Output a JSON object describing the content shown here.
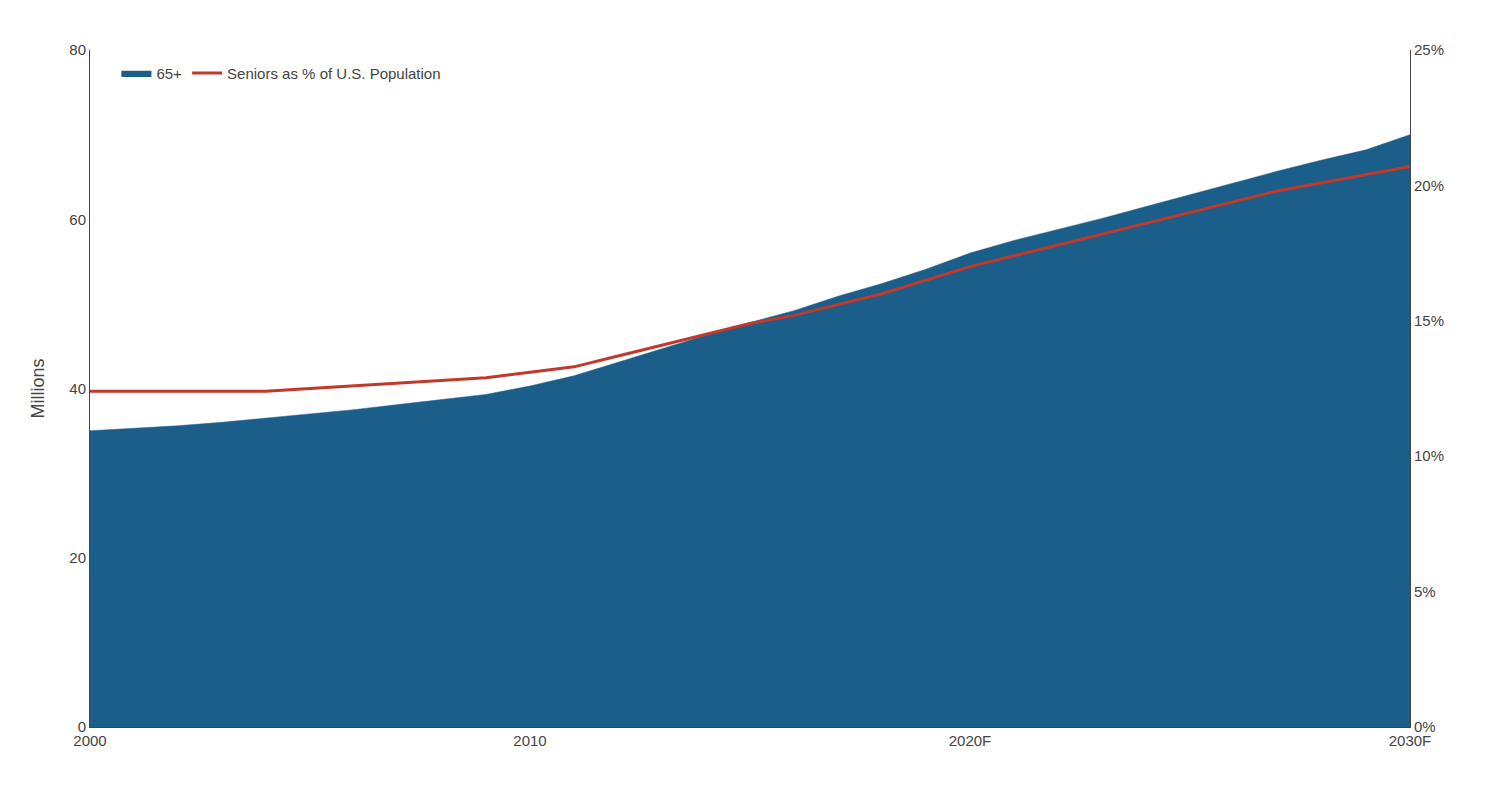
{
  "chart_data": {
    "type": "area",
    "x": [
      2000,
      2001,
      2002,
      2003,
      2004,
      2005,
      2006,
      2007,
      2008,
      2009,
      2010,
      2011,
      2012,
      2013,
      2014,
      2015,
      2016,
      2017,
      2018,
      2019,
      2020,
      2021,
      2022,
      2023,
      2024,
      2025,
      2026,
      2027,
      2028,
      2029,
      2030
    ],
    "series": [
      {
        "name": "65+",
        "type": "area",
        "color": "#1b5e8a",
        "values": [
          35.0,
          35.3,
          35.6,
          36.0,
          36.5,
          37.0,
          37.5,
          38.1,
          38.7,
          39.3,
          40.3,
          41.5,
          43.1,
          44.7,
          46.3,
          47.8,
          49.2,
          50.9,
          52.4,
          54.1,
          56.0,
          57.5,
          58.8,
          60.1,
          61.5,
          62.9,
          64.3,
          65.7,
          67.0,
          68.2,
          70.0
        ]
      },
      {
        "name": "Seniors as % of U.S. Population",
        "type": "line",
        "color": "#c0392b",
        "axis": "y2",
        "values": [
          0.124,
          0.124,
          0.124,
          0.124,
          0.124,
          0.125,
          0.126,
          0.127,
          0.128,
          0.129,
          0.131,
          0.133,
          0.137,
          0.141,
          0.145,
          0.149,
          0.152,
          0.156,
          0.16,
          0.165,
          0.17,
          0.174,
          0.178,
          0.182,
          0.186,
          0.19,
          0.194,
          0.198,
          0.201,
          0.204,
          0.207
        ]
      }
    ],
    "ylabel": "Millions",
    "xlim": [
      2000,
      2030
    ],
    "xticks": [
      2000,
      2010,
      {
        "value": 2020,
        "label": "2020F"
      },
      {
        "value": 2030,
        "label": "2030F"
      }
    ],
    "ylim": [
      0,
      80
    ],
    "yticks": [
      0,
      20,
      40,
      60,
      80
    ],
    "y2lim": [
      0,
      0.25
    ],
    "y2ticks": [
      {
        "value": 0.0,
        "label": "0%"
      },
      {
        "value": 0.05,
        "label": "5%"
      },
      {
        "value": 0.1,
        "label": "10%"
      },
      {
        "value": 0.15,
        "label": "15%"
      },
      {
        "value": 0.2,
        "label": "20%"
      },
      {
        "value": 0.25,
        "label": "25%"
      }
    ],
    "grid": false,
    "legend": "upper left"
  }
}
